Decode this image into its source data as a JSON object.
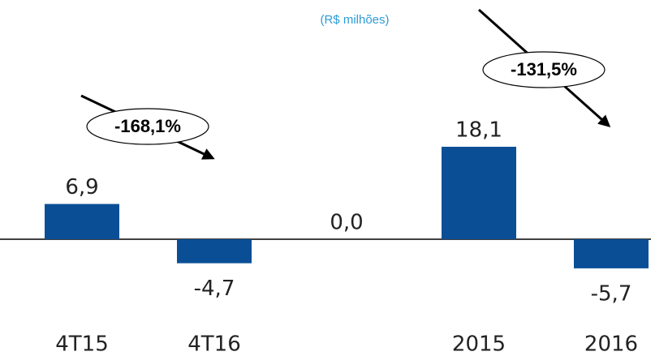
{
  "chart_data": {
    "type": "bar",
    "subtitle": "(R$ milhões)",
    "categories": [
      "4T15",
      "4T16",
      null,
      "2015",
      "2016"
    ],
    "values": [
      6.9,
      -4.7,
      0.0,
      18.1,
      -5.7
    ],
    "value_labels": [
      "6,9",
      "-4,7",
      "0,0",
      "18,1",
      "-5,7"
    ],
    "color": "#0a4f96",
    "annotations": [
      "-168,1%",
      "-131,5%"
    ]
  }
}
